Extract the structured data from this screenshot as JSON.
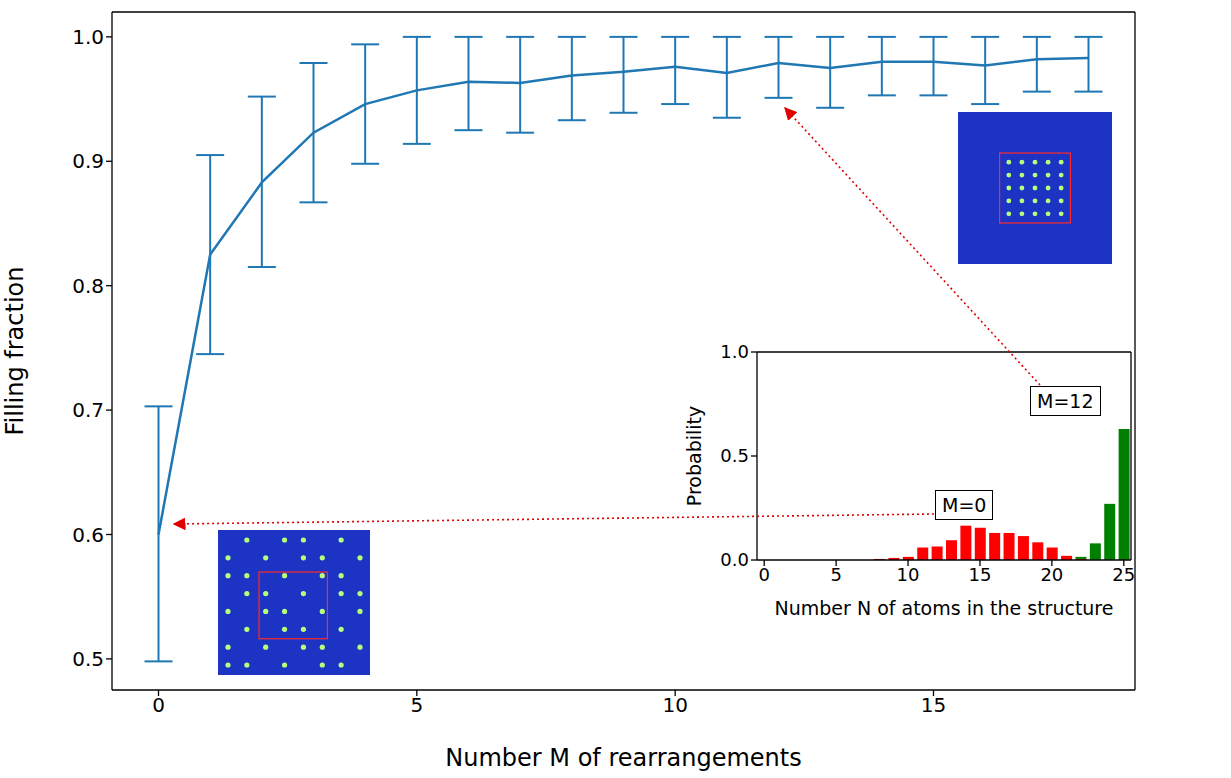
{
  "chart_data": [
    {
      "type": "line",
      "xlabel": "Number M of rearrangements",
      "ylabel": "Filling fraction",
      "x": [
        0,
        1,
        2,
        3,
        4,
        5,
        6,
        7,
        8,
        9,
        10,
        11,
        12,
        13,
        14,
        15,
        16,
        17,
        18
      ],
      "values": [
        0.6,
        0.825,
        0.883,
        0.923,
        0.946,
        0.957,
        0.964,
        0.963,
        0.969,
        0.972,
        0.976,
        0.971,
        0.979,
        0.975,
        0.98,
        0.98,
        0.977,
        0.982,
        0.983
      ],
      "yerr": [
        [
          0.102,
          0.103
        ],
        [
          0.08,
          0.08
        ],
        [
          0.068,
          0.069
        ],
        [
          0.056,
          0.056
        ],
        [
          0.048,
          0.048
        ],
        [
          0.043,
          0.043
        ],
        [
          0.039,
          0.036
        ],
        [
          0.04,
          0.037
        ],
        [
          0.036,
          0.031
        ],
        [
          0.033,
          0.028
        ],
        [
          0.03,
          0.024
        ],
        [
          0.036,
          0.029
        ],
        [
          0.028,
          0.021
        ],
        [
          0.032,
          0.025
        ],
        [
          0.027,
          0.02
        ],
        [
          0.027,
          0.02
        ],
        [
          0.031,
          0.023
        ],
        [
          0.026,
          0.018
        ],
        [
          0.027,
          0.017
        ]
      ],
      "color": "#1f77b4",
      "xlim": [
        -0.9,
        18.9
      ],
      "ylim": [
        0.475,
        1.02
      ],
      "xticks": [
        0,
        5,
        10,
        15
      ],
      "yticks": [
        0.5,
        0.6,
        0.7,
        0.8,
        0.9,
        {
          "value": 1,
          "label": "1.0"
        }
      ]
    },
    {
      "type": "bar",
      "xlabel": "Number N of atoms in the structure",
      "ylabel": "Probability",
      "stacked": true,
      "x": [
        0,
        1,
        2,
        3,
        4,
        5,
        6,
        7,
        8,
        9,
        10,
        11,
        12,
        13,
        14,
        15,
        16,
        17,
        18,
        19,
        20,
        21,
        22,
        23,
        24,
        25
      ],
      "series": [
        {
          "name": "M=0",
          "color": "#ff0000",
          "values": [
            0,
            0,
            0,
            0,
            0,
            0,
            0,
            0,
            0.005,
            0.01,
            0.015,
            0.06,
            0.065,
            0.095,
            0.165,
            0.155,
            0.13,
            0.13,
            0.115,
            0.085,
            0.06,
            0.02,
            0.005,
            0,
            0,
            0
          ]
        },
        {
          "name": "M=12",
          "color": "#008000",
          "values": [
            0,
            0,
            0,
            0,
            0,
            0,
            0,
            0,
            0,
            0,
            0,
            0,
            0,
            0,
            0,
            0,
            0,
            0,
            0,
            0,
            0,
            0,
            0.01,
            0.08,
            0.27,
            0.63
          ]
        }
      ],
      "xlim": [
        -0.5,
        25.5
      ],
      "ylim": [
        0,
        1
      ],
      "xticks": [
        0,
        5,
        10,
        15,
        20,
        25
      ],
      "yticks": [
        {
          "value": 0,
          "label": "0.0"
        },
        0.5,
        {
          "value": 1,
          "label": "1.0"
        }
      ]
    }
  ]
}
